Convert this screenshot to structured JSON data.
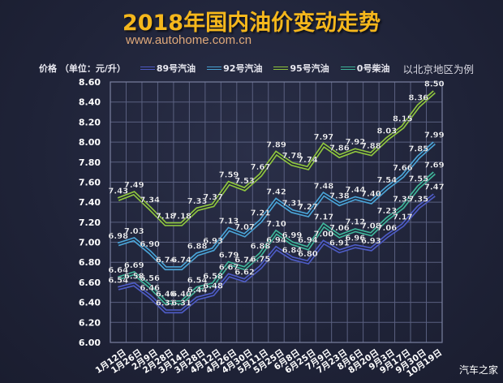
{
  "header": {
    "title": "2018年国内油价变动走势",
    "url": "www.autohome.com.cn",
    "unit_label": "价格 （单位：元/升）",
    "note": "以北京地区为例"
  },
  "legend": [
    {
      "name": "89号汽油",
      "color": "#4d5bc4"
    },
    {
      "name": "92号汽油",
      "color": "#4aa3d6"
    },
    {
      "name": "95号汽油",
      "color": "#8ec43f"
    },
    {
      "name": "0号柴油",
      "color": "#3fb59a"
    }
  ],
  "watermark": "汽车之家",
  "chart_data": {
    "type": "line",
    "title": "2018年国内油价变动走势",
    "subtitle": "以北京地区为例",
    "xlabel": "",
    "ylabel": "价格 （单位：元/升）",
    "ylim": [
      6.0,
      8.6
    ],
    "yticks": [
      6.0,
      6.2,
      6.4,
      6.6,
      6.8,
      7.0,
      7.2,
      7.4,
      7.6,
      7.8,
      8.0,
      8.2,
      8.4,
      8.6
    ],
    "grid": true,
    "legend_position": "top",
    "categories": [
      "1月12日",
      "1月26日",
      "2月9日",
      "2月28日",
      "3月14日",
      "3月28日",
      "4月12日",
      "4月26日",
      "4月30日",
      "5月11日",
      "5月25日",
      "6月8日",
      "6月25日",
      "7月9日",
      "7月23日",
      "8月6日",
      "8月20日",
      "9月3日",
      "9月17日",
      "9月30日",
      "10月19日"
    ],
    "series": [
      {
        "name": "89号汽油",
        "color": "#4d5bc4",
        "values": [
          6.54,
          6.58,
          6.46,
          6.31,
          6.31,
          6.44,
          6.48,
          6.67,
          6.62,
          6.75,
          6.94,
          6.84,
          6.8,
          7.0,
          6.91,
          6.96,
          6.93,
          7.06,
          7.17,
          7.35,
          7.47
        ]
      },
      {
        "name": "92号汽油",
        "color": "#4aa3d6",
        "values": [
          6.98,
          7.03,
          6.9,
          6.74,
          6.74,
          6.88,
          6.93,
          7.13,
          7.07,
          7.21,
          7.42,
          7.31,
          7.27,
          7.48,
          7.38,
          7.44,
          7.4,
          7.54,
          7.66,
          7.85,
          7.99
        ]
      },
      {
        "name": "95号汽油",
        "color": "#8ec43f",
        "values": [
          7.43,
          7.49,
          7.34,
          7.18,
          7.18,
          7.33,
          7.37,
          7.59,
          7.53,
          7.67,
          7.89,
          7.78,
          7.74,
          7.97,
          7.86,
          7.92,
          7.88,
          8.03,
          8.15,
          8.36,
          8.5
        ]
      },
      {
        "name": "0号柴油",
        "color": "#3fb59a",
        "values": [
          6.64,
          6.69,
          6.56,
          6.4,
          6.4,
          6.54,
          6.58,
          6.79,
          6.74,
          6.88,
          7.1,
          6.99,
          6.94,
          7.17,
          7.06,
          7.12,
          7.08,
          7.23,
          7.35,
          7.55,
          7.69
        ]
      }
    ]
  }
}
